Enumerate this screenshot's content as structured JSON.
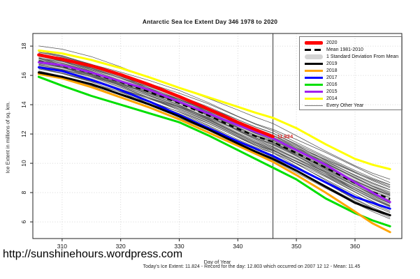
{
  "page": {
    "title": "Antarctic Sea Ice Extent Day 346 1978 to 2020",
    "url_text": "http://sunshinehours.wordpress.com",
    "footer": "Today's Ice Extent: 11.824  - Record for the day: 12.803 which occurred on 2007 12 12  - Mean: 11.45"
  },
  "legend": {
    "items": [
      {
        "label": "2020",
        "swatch": "thick-line",
        "color": "#FF0000"
      },
      {
        "label": "Mean 1981-2010",
        "swatch": "dashed-line",
        "color": "#000000"
      },
      {
        "label": "1 Standard Deviation From Mean",
        "swatch": "band",
        "color": "#D4D4D4"
      },
      {
        "label": "2019",
        "swatch": "line",
        "color": "#000000"
      },
      {
        "label": "2018",
        "swatch": "line",
        "color": "#FFA500"
      },
      {
        "label": "2017",
        "swatch": "line",
        "color": "#0000FF"
      },
      {
        "label": "2016",
        "swatch": "line",
        "color": "#00DF00"
      },
      {
        "label": "2015",
        "swatch": "line",
        "color": "#A020F0"
      },
      {
        "label": "2014",
        "swatch": "line",
        "color": "#FFFF00"
      },
      {
        "label": "Every Other Year",
        "swatch": "thin-line",
        "color": "#777777"
      }
    ]
  },
  "chart_data": {
    "type": "line",
    "title": "Antarctic Sea Ice Extent Day 346 1978 to 2020",
    "xlabel": "Day of Year",
    "ylabel": "Ice Extent in millions of sq. km.",
    "x_ticks": [
      310,
      320,
      330,
      340,
      350,
      360
    ],
    "y_ticks": [
      6,
      8,
      10,
      12,
      14,
      16,
      18
    ],
    "x_range": [
      305,
      368
    ],
    "y_range": [
      4.86,
      18.86
    ],
    "grid": "dotted",
    "marker_day": 346,
    "annotation": {
      "text": "11.824",
      "day": 346,
      "value": 11.824,
      "color": "#E03030"
    },
    "band_color": "#D4D4D4",
    "background_color": "#555555",
    "x": [
      306,
      310,
      315,
      320,
      325,
      330,
      335,
      340,
      343,
      346,
      350,
      355,
      360,
      363,
      366
    ],
    "mean_values": [
      16.95,
      16.65,
      16.15,
      15.55,
      14.85,
      14.1,
      13.25,
      12.35,
      11.85,
      11.45,
      10.7,
      9.7,
      8.65,
      8.05,
      7.55
    ],
    "sd_halfwidth": [
      0.5,
      0.5,
      0.5,
      0.5,
      0.5,
      0.5,
      0.5,
      0.5,
      0.52,
      0.55,
      0.55,
      0.55,
      0.55,
      0.55,
      0.55
    ],
    "series": [
      {
        "name": "2014",
        "color": "#FFFF00",
        "width": 3,
        "values": [
          17.7,
          17.5,
          17.05,
          16.5,
          15.85,
          15.15,
          14.5,
          13.85,
          13.45,
          13.1,
          12.4,
          11.3,
          10.3,
          9.9,
          9.6
        ]
      },
      {
        "name": "2015",
        "color": "#A020F0",
        "width": 3,
        "values": [
          16.9,
          16.7,
          16.2,
          15.6,
          15.0,
          14.2,
          13.4,
          12.6,
          12.15,
          11.7,
          10.9,
          9.9,
          8.7,
          8.0,
          7.35
        ]
      },
      {
        "name": "2016",
        "color": "#00DF00",
        "width": 3,
        "values": [
          15.9,
          15.3,
          14.6,
          14.0,
          13.4,
          12.8,
          11.9,
          10.9,
          10.3,
          9.7,
          8.9,
          7.6,
          6.6,
          6.1,
          5.7
        ]
      },
      {
        "name": "2017",
        "color": "#0000FF",
        "width": 3,
        "values": [
          16.55,
          16.3,
          15.7,
          15.0,
          14.2,
          13.3,
          12.4,
          11.5,
          11.0,
          10.5,
          9.7,
          8.7,
          7.7,
          7.3,
          6.9
        ]
      },
      {
        "name": "2018",
        "color": "#FFA500",
        "width": 3,
        "values": [
          16.1,
          15.8,
          15.2,
          14.5,
          13.8,
          13.0,
          12.1,
          11.2,
          10.65,
          10.1,
          9.2,
          8.0,
          6.7,
          5.9,
          5.3
        ]
      },
      {
        "name": "2019",
        "color": "#000000",
        "width": 3,
        "values": [
          16.2,
          15.9,
          15.4,
          14.7,
          14.0,
          13.2,
          12.3,
          11.35,
          10.8,
          10.3,
          9.5,
          8.4,
          7.3,
          6.85,
          6.45
        ]
      },
      {
        "name": "2020",
        "color": "#FF0000",
        "width": 4.5,
        "values": [
          17.4,
          17.1,
          16.65,
          16.05,
          15.35,
          14.55,
          13.7,
          12.8,
          12.3,
          11.824
        ]
      }
    ],
    "background_years": [
      {
        "s": 1.0,
        "e": 1.3,
        "w": 0.12,
        "p": 0.5
      },
      {
        "s": 0.7,
        "e": -0.5,
        "w": 0.09,
        "p": 0.15
      },
      {
        "s": 0.6,
        "e": 1.1,
        "w": 0.07,
        "p": 2.7
      },
      {
        "s": 0.55,
        "e": 0.9,
        "w": 0.1,
        "p": 1.2
      },
      {
        "s": 0.5,
        "e": -0.2,
        "w": 0.08,
        "p": 2.1
      },
      {
        "s": 0.45,
        "e": 0.6,
        "w": 0.1,
        "p": 0.3
      },
      {
        "s": 0.4,
        "e": -0.6,
        "w": 0.07,
        "p": 1.8
      },
      {
        "s": 0.35,
        "e": 0.3,
        "w": 0.09,
        "p": 2.6
      },
      {
        "s": 0.3,
        "e": -1.0,
        "w": 0.1,
        "p": 0.9
      },
      {
        "s": 0.3,
        "e": 0.8,
        "w": 0.06,
        "p": 1.5
      },
      {
        "s": 0.25,
        "e": -0.3,
        "w": 0.08,
        "p": 3.0
      },
      {
        "s": 0.2,
        "e": 0.45,
        "w": 0.1,
        "p": 0.2
      },
      {
        "s": 0.15,
        "e": -0.75,
        "w": 0.07,
        "p": 2.4
      },
      {
        "s": 0.1,
        "e": 0.15,
        "w": 0.09,
        "p": 1.1
      },
      {
        "s": 0.05,
        "e": -1.2,
        "w": 0.08,
        "p": 0.6
      },
      {
        "s": 0.0,
        "e": 0.55,
        "w": 0.1,
        "p": 1.9
      },
      {
        "s": 0.0,
        "e": -0.45,
        "w": 0.06,
        "p": 2.8
      },
      {
        "s": -0.05,
        "e": 0.25,
        "w": 0.09,
        "p": 0.4
      },
      {
        "s": -0.1,
        "e": -0.9,
        "w": 0.07,
        "p": 1.6
      },
      {
        "s": -0.15,
        "e": 0.7,
        "w": 0.1,
        "p": 2.2
      },
      {
        "s": -0.2,
        "e": -0.15,
        "w": 0.08,
        "p": 0.8
      },
      {
        "s": -0.25,
        "e": 0.35,
        "w": 0.06,
        "p": 2.9
      },
      {
        "s": -0.3,
        "e": -1.35,
        "w": 0.1,
        "p": 1.4
      },
      {
        "s": -0.35,
        "e": 0.1,
        "w": 0.07,
        "p": 0.1
      },
      {
        "s": -0.4,
        "e": -0.55,
        "w": 0.09,
        "p": 2.0
      },
      {
        "s": -0.45,
        "e": 0.9,
        "w": 0.08,
        "p": 1.0
      },
      {
        "s": -0.5,
        "e": -0.25,
        "w": 0.1,
        "p": 2.5
      },
      {
        "s": -0.55,
        "e": -1.1,
        "w": 0.06,
        "p": 0.7
      },
      {
        "s": -0.6,
        "e": 0.2,
        "w": 0.09,
        "p": 1.7
      },
      {
        "s": -0.65,
        "e": -0.7,
        "w": 0.07,
        "p": 3.1
      },
      {
        "s": -0.75,
        "e": -1.45,
        "w": 0.1,
        "p": 1.3
      },
      {
        "s": -0.85,
        "e": -0.35,
        "w": 0.08,
        "p": 2.3
      }
    ]
  }
}
